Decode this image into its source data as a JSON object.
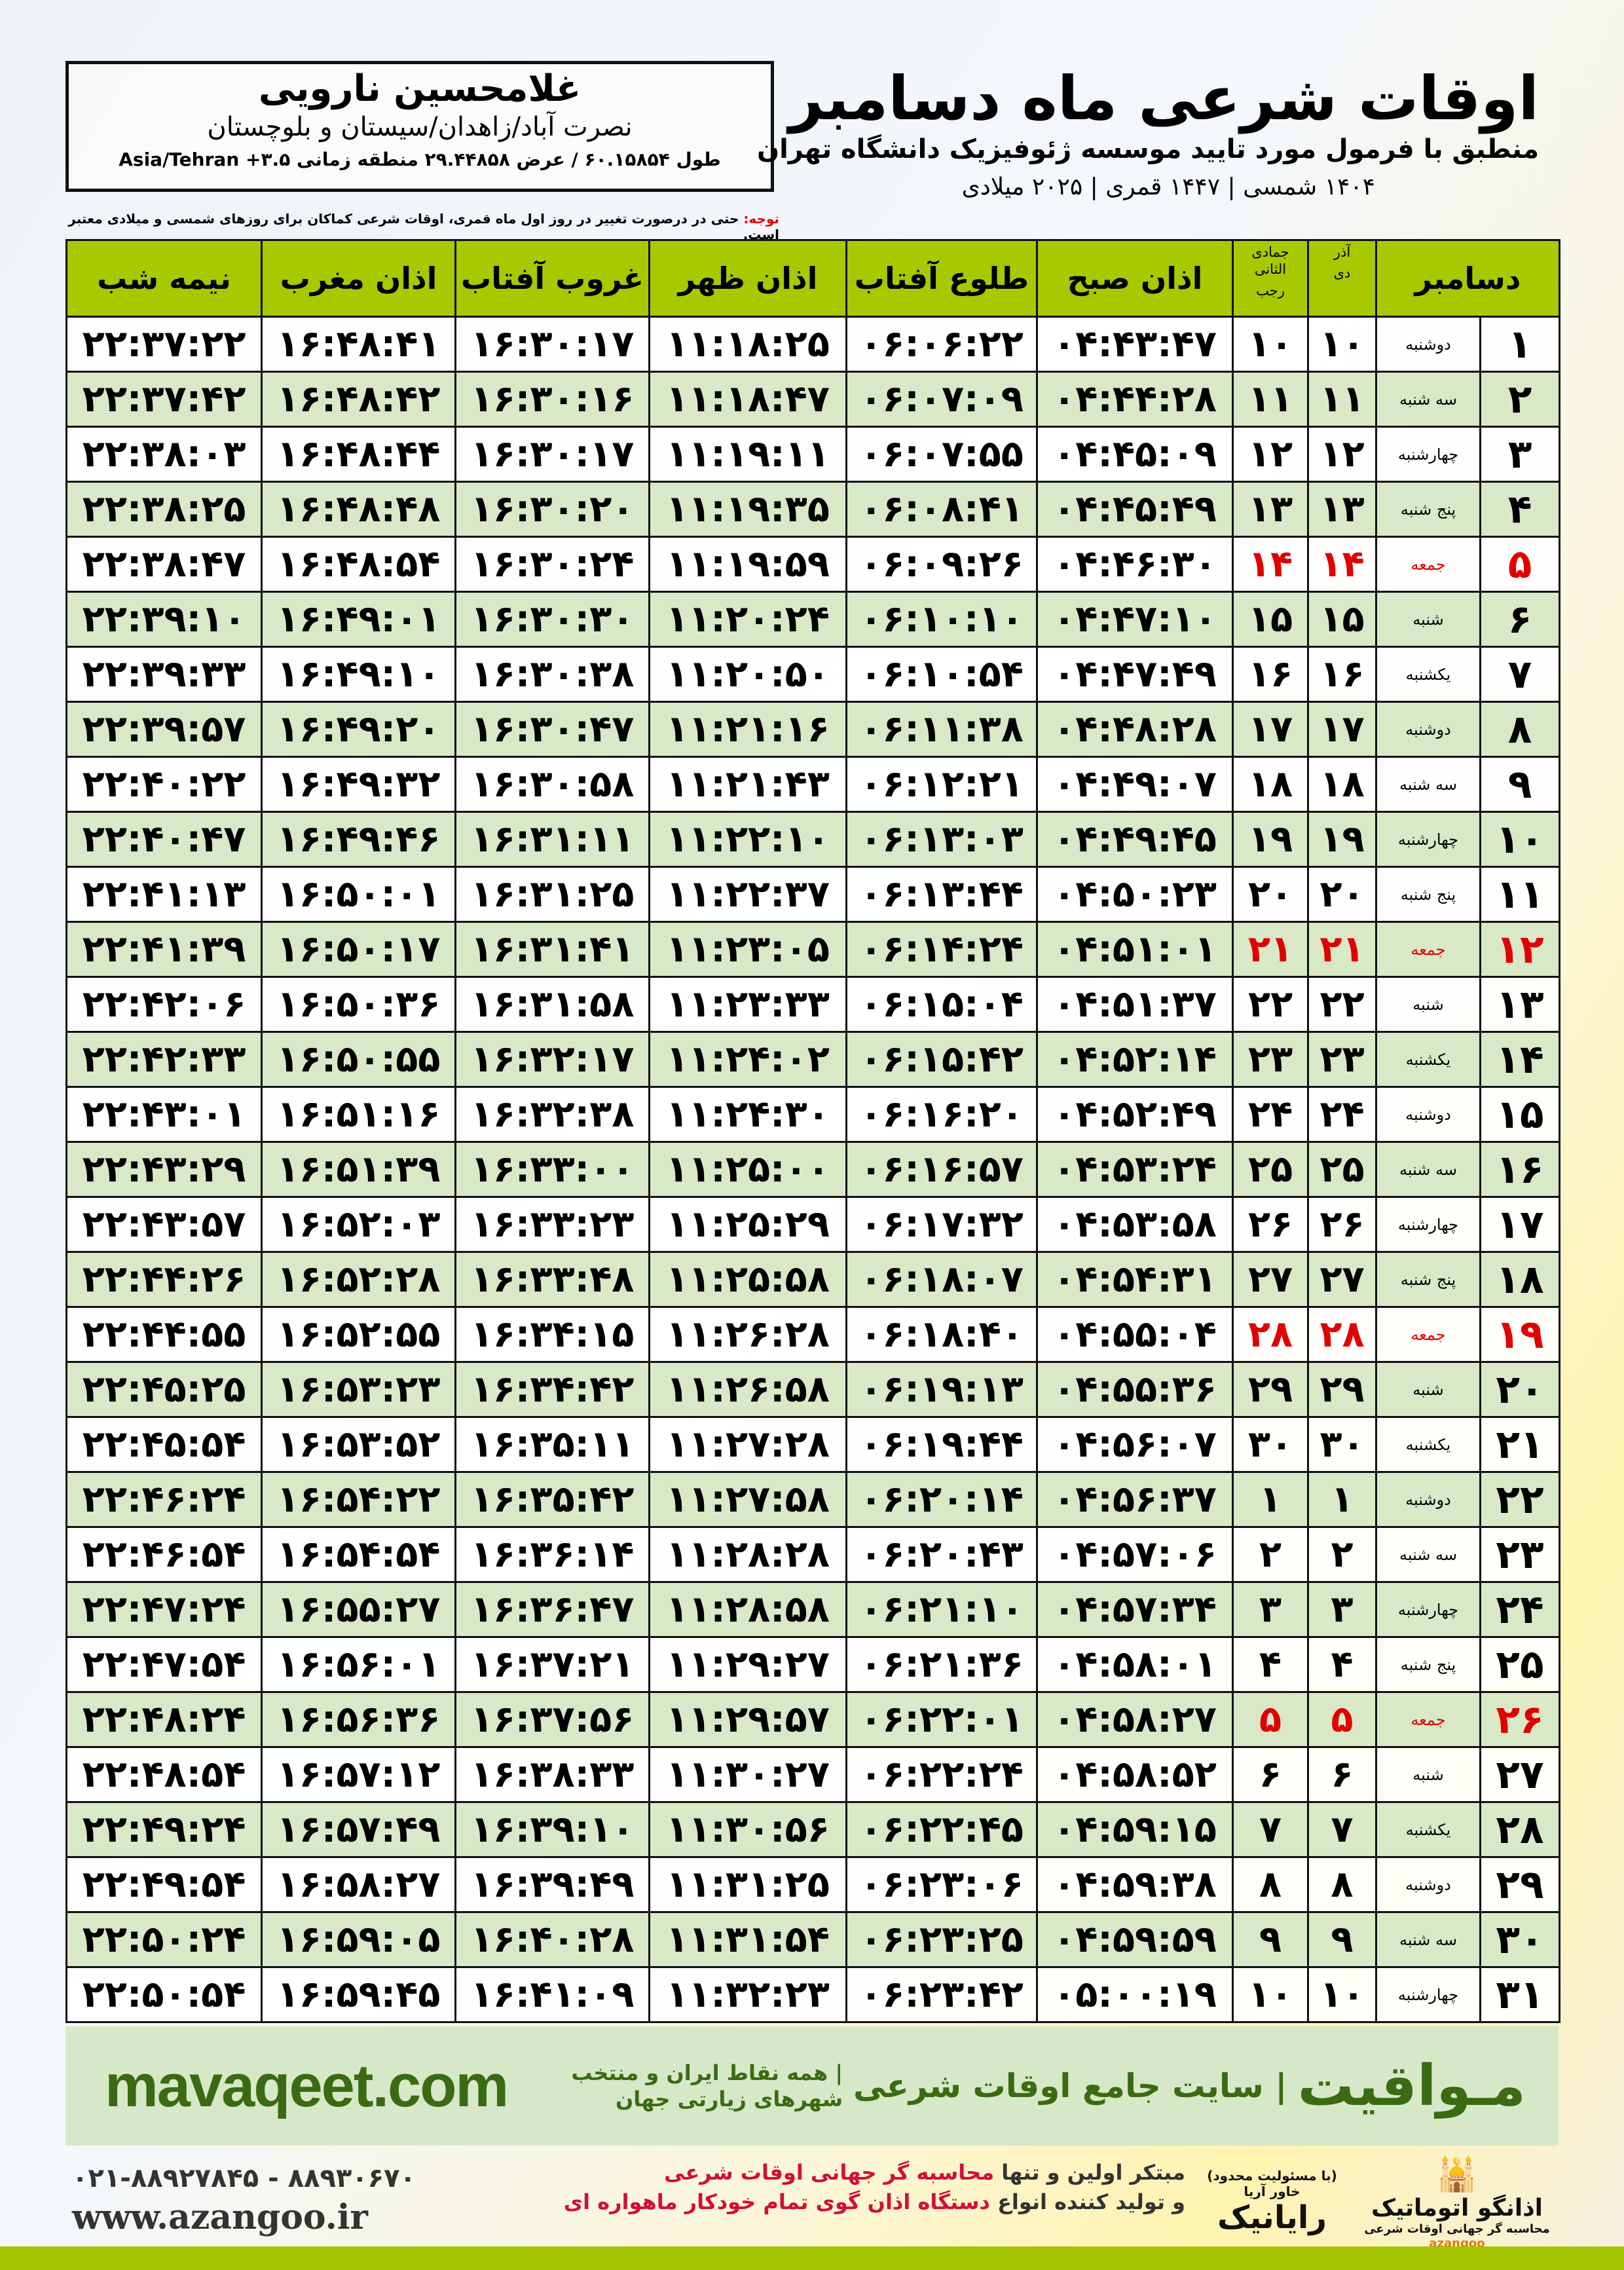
{
  "header": {
    "title": "اوقات شرعی ماه دسامبر",
    "subtitle": "منطبق با فرمول مورد تایید موسسه ژئوفیزیک دانشگاه تهران",
    "years": "۱۴۰۴ شمسی | ۱۴۴۷ قمری | ۲۰۲۵ میلادی"
  },
  "location": {
    "name": "غلامحسین نارویی",
    "place": "نصرت آباد/زاهدان/سیستان و بلوچستان",
    "coords": "طول ۶۰.۱۵۸۵۴ / عرض ۲۹.۴۴۸۵۸ منطقه زمانی ۳.۵+ Asia/Tehran"
  },
  "note": {
    "label": "توجه:",
    "text": " حتی در درصورت تغییر در روز اول ماه قمری، اوقات شرعی کماکان برای روزهای شمسی و میلادی معتبر است."
  },
  "colors": {
    "header": "#a8c800",
    "row_alt": "#d9e8c6",
    "friday": "#e00000",
    "footer": "#d7e8c8",
    "brand": "#3a6b12"
  },
  "table": {
    "headers": {
      "day": "دسامبر",
      "dey_top": "آذر",
      "dey": "دی",
      "rajab_top": "جمادی الثانی",
      "rajab": "رجب",
      "fajr": "اذان صبح",
      "sunrise": "طلوع آفتاب",
      "dhuhr": "اذان ظهر",
      "sunset": "غروب آفتاب",
      "maghrib": "اذان مغرب",
      "midnight": "نیمه شب"
    },
    "rows": [
      [
        "۱",
        "دوشنبه",
        "۱۰",
        "۱۰",
        "۰۴:۴۳:۴۷",
        "۰۶:۰۶:۲۲",
        "۱۱:۱۸:۲۵",
        "۱۶:۳۰:۱۷",
        "۱۶:۴۸:۴۱",
        "۲۲:۳۷:۲۲"
      ],
      [
        "۲",
        "سه شنبه",
        "۱۱",
        "۱۱",
        "۰۴:۴۴:۲۸",
        "۰۶:۰۷:۰۹",
        "۱۱:۱۸:۴۷",
        "۱۶:۳۰:۱۶",
        "۱۶:۴۸:۴۲",
        "۲۲:۳۷:۴۲"
      ],
      [
        "۳",
        "چهارشنبه",
        "۱۲",
        "۱۲",
        "۰۴:۴۵:۰۹",
        "۰۶:۰۷:۵۵",
        "۱۱:۱۹:۱۱",
        "۱۶:۳۰:۱۷",
        "۱۶:۴۸:۴۴",
        "۲۲:۳۸:۰۳"
      ],
      [
        "۴",
        "پنج شنبه",
        "۱۳",
        "۱۳",
        "۰۴:۴۵:۴۹",
        "۰۶:۰۸:۴۱",
        "۱۱:۱۹:۳۵",
        "۱۶:۳۰:۲۰",
        "۱۶:۴۸:۴۸",
        "۲۲:۳۸:۲۵"
      ],
      [
        "۵",
        "جمعه",
        "۱۴",
        "۱۴",
        "۰۴:۴۶:۳۰",
        "۰۶:۰۹:۲۶",
        "۱۱:۱۹:۵۹",
        "۱۶:۳۰:۲۴",
        "۱۶:۴۸:۵۴",
        "۲۲:۳۸:۴۷"
      ],
      [
        "۶",
        "شنبه",
        "۱۵",
        "۱۵",
        "۰۴:۴۷:۱۰",
        "۰۶:۱۰:۱۰",
        "۱۱:۲۰:۲۴",
        "۱۶:۳۰:۳۰",
        "۱۶:۴۹:۰۱",
        "۲۲:۳۹:۱۰"
      ],
      [
        "۷",
        "یکشنبه",
        "۱۶",
        "۱۶",
        "۰۴:۴۷:۴۹",
        "۰۶:۱۰:۵۴",
        "۱۱:۲۰:۵۰",
        "۱۶:۳۰:۳۸",
        "۱۶:۴۹:۱۰",
        "۲۲:۳۹:۳۳"
      ],
      [
        "۸",
        "دوشنبه",
        "۱۷",
        "۱۷",
        "۰۴:۴۸:۲۸",
        "۰۶:۱۱:۳۸",
        "۱۱:۲۱:۱۶",
        "۱۶:۳۰:۴۷",
        "۱۶:۴۹:۲۰",
        "۲۲:۳۹:۵۷"
      ],
      [
        "۹",
        "سه شنبه",
        "۱۸",
        "۱۸",
        "۰۴:۴۹:۰۷",
        "۰۶:۱۲:۲۱",
        "۱۱:۲۱:۴۳",
        "۱۶:۳۰:۵۸",
        "۱۶:۴۹:۳۲",
        "۲۲:۴۰:۲۲"
      ],
      [
        "۱۰",
        "چهارشنبه",
        "۱۹",
        "۱۹",
        "۰۴:۴۹:۴۵",
        "۰۶:۱۳:۰۳",
        "۱۱:۲۲:۱۰",
        "۱۶:۳۱:۱۱",
        "۱۶:۴۹:۴۶",
        "۲۲:۴۰:۴۷"
      ],
      [
        "۱۱",
        "پنج شنبه",
        "۲۰",
        "۲۰",
        "۰۴:۵۰:۲۳",
        "۰۶:۱۳:۴۴",
        "۱۱:۲۲:۳۷",
        "۱۶:۳۱:۲۵",
        "۱۶:۵۰:۰۱",
        "۲۲:۴۱:۱۳"
      ],
      [
        "۱۲",
        "جمعه",
        "۲۱",
        "۲۱",
        "۰۴:۵۱:۰۱",
        "۰۶:۱۴:۲۴",
        "۱۱:۲۳:۰۵",
        "۱۶:۳۱:۴۱",
        "۱۶:۵۰:۱۷",
        "۲۲:۴۱:۳۹"
      ],
      [
        "۱۳",
        "شنبه",
        "۲۲",
        "۲۲",
        "۰۴:۵۱:۳۷",
        "۰۶:۱۵:۰۴",
        "۱۱:۲۳:۳۳",
        "۱۶:۳۱:۵۸",
        "۱۶:۵۰:۳۶",
        "۲۲:۴۲:۰۶"
      ],
      [
        "۱۴",
        "یکشنبه",
        "۲۳",
        "۲۳",
        "۰۴:۵۲:۱۴",
        "۰۶:۱۵:۴۲",
        "۱۱:۲۴:۰۲",
        "۱۶:۳۲:۱۷",
        "۱۶:۵۰:۵۵",
        "۲۲:۴۲:۳۳"
      ],
      [
        "۱۵",
        "دوشنبه",
        "۲۴",
        "۲۴",
        "۰۴:۵۲:۴۹",
        "۰۶:۱۶:۲۰",
        "۱۱:۲۴:۳۰",
        "۱۶:۳۲:۳۸",
        "۱۶:۵۱:۱۶",
        "۲۲:۴۳:۰۱"
      ],
      [
        "۱۶",
        "سه شنبه",
        "۲۵",
        "۲۵",
        "۰۴:۵۳:۲۴",
        "۰۶:۱۶:۵۷",
        "۱۱:۲۵:۰۰",
        "۱۶:۳۳:۰۰",
        "۱۶:۵۱:۳۹",
        "۲۲:۴۳:۲۹"
      ],
      [
        "۱۷",
        "چهارشنبه",
        "۲۶",
        "۲۶",
        "۰۴:۵۳:۵۸",
        "۰۶:۱۷:۳۲",
        "۱۱:۲۵:۲۹",
        "۱۶:۳۳:۲۳",
        "۱۶:۵۲:۰۳",
        "۲۲:۴۳:۵۷"
      ],
      [
        "۱۸",
        "پنج شنبه",
        "۲۷",
        "۲۷",
        "۰۴:۵۴:۳۱",
        "۰۶:۱۸:۰۷",
        "۱۱:۲۵:۵۸",
        "۱۶:۳۳:۴۸",
        "۱۶:۵۲:۲۸",
        "۲۲:۴۴:۲۶"
      ],
      [
        "۱۹",
        "جمعه",
        "۲۸",
        "۲۸",
        "۰۴:۵۵:۰۴",
        "۰۶:۱۸:۴۰",
        "۱۱:۲۶:۲۸",
        "۱۶:۳۴:۱۵",
        "۱۶:۵۲:۵۵",
        "۲۲:۴۴:۵۵"
      ],
      [
        "۲۰",
        "شنبه",
        "۲۹",
        "۲۹",
        "۰۴:۵۵:۳۶",
        "۰۶:۱۹:۱۳",
        "۱۱:۲۶:۵۸",
        "۱۶:۳۴:۴۲",
        "۱۶:۵۳:۲۳",
        "۲۲:۴۵:۲۵"
      ],
      [
        "۲۱",
        "یکشنبه",
        "۳۰",
        "۳۰",
        "۰۴:۵۶:۰۷",
        "۰۶:۱۹:۴۴",
        "۱۱:۲۷:۲۸",
        "۱۶:۳۵:۱۱",
        "۱۶:۵۳:۵۲",
        "۲۲:۴۵:۵۴"
      ],
      [
        "۲۲",
        "دوشنبه",
        "۱",
        "۱",
        "۰۴:۵۶:۳۷",
        "۰۶:۲۰:۱۴",
        "۱۱:۲۷:۵۸",
        "۱۶:۳۵:۴۲",
        "۱۶:۵۴:۲۲",
        "۲۲:۴۶:۲۴"
      ],
      [
        "۲۳",
        "سه شنبه",
        "۲",
        "۲",
        "۰۴:۵۷:۰۶",
        "۰۶:۲۰:۴۳",
        "۱۱:۲۸:۲۸",
        "۱۶:۳۶:۱۴",
        "۱۶:۵۴:۵۴",
        "۲۲:۴۶:۵۴"
      ],
      [
        "۲۴",
        "چهارشنبه",
        "۳",
        "۳",
        "۰۴:۵۷:۳۴",
        "۰۶:۲۱:۱۰",
        "۱۱:۲۸:۵۸",
        "۱۶:۳۶:۴۷",
        "۱۶:۵۵:۲۷",
        "۲۲:۴۷:۲۴"
      ],
      [
        "۲۵",
        "پنج شنبه",
        "۴",
        "۴",
        "۰۴:۵۸:۰۱",
        "۰۶:۲۱:۳۶",
        "۱۱:۲۹:۲۷",
        "۱۶:۳۷:۲۱",
        "۱۶:۵۶:۰۱",
        "۲۲:۴۷:۵۴"
      ],
      [
        "۲۶",
        "جمعه",
        "۵",
        "۵",
        "۰۴:۵۸:۲۷",
        "۰۶:۲۲:۰۱",
        "۱۱:۲۹:۵۷",
        "۱۶:۳۷:۵۶",
        "۱۶:۵۶:۳۶",
        "۲۲:۴۸:۲۴"
      ],
      [
        "۲۷",
        "شنبه",
        "۶",
        "۶",
        "۰۴:۵۸:۵۲",
        "۰۶:۲۲:۲۴",
        "۱۱:۳۰:۲۷",
        "۱۶:۳۸:۳۳",
        "۱۶:۵۷:۱۲",
        "۲۲:۴۸:۵۴"
      ],
      [
        "۲۸",
        "یکشنبه",
        "۷",
        "۷",
        "۰۴:۵۹:۱۵",
        "۰۶:۲۲:۴۵",
        "۱۱:۳۰:۵۶",
        "۱۶:۳۹:۱۰",
        "۱۶:۵۷:۴۹",
        "۲۲:۴۹:۲۴"
      ],
      [
        "۲۹",
        "دوشنبه",
        "۸",
        "۸",
        "۰۴:۵۹:۳۸",
        "۰۶:۲۳:۰۶",
        "۱۱:۳۱:۲۵",
        "۱۶:۳۹:۴۹",
        "۱۶:۵۸:۲۷",
        "۲۲:۴۹:۵۴"
      ],
      [
        "۳۰",
        "سه شنبه",
        "۹",
        "۹",
        "۰۴:۵۹:۵۹",
        "۰۶:۲۳:۲۵",
        "۱۱:۳۱:۵۴",
        "۱۶:۴۰:۲۸",
        "۱۶:۵۹:۰۵",
        "۲۲:۵۰:۲۴"
      ],
      [
        "۳۱",
        "چهارشنبه",
        "۱۰",
        "۱۰",
        "۰۵:۰۰:۱۹",
        "۰۶:۲۳:۴۲",
        "۱۱:۳۲:۲۳",
        "۱۶:۴۱:۰۹",
        "۱۶:۵۹:۴۵",
        "۲۲:۵۰:۵۴"
      ]
    ]
  },
  "footer": {
    "site": "mavaqeet.com",
    "brand": "مـواقیت",
    "slogan1": "| سایت جامع اوقات شرعی",
    "slogan2": "| همه نقاط ایران و منتخب شهرهای زیارتی جهان",
    "phones": "۰۲۱-۸۸۹۲۷۸۴۵ - ۸۸۹۳۰۶۷۰",
    "web": "www.azangoo.ir",
    "ad_line1_a": "مبتکر اولین و تنها ",
    "ad_line1_b": "محاسبه گر جهانی اوقات شرعی",
    "ad_line2_a": "و تولید کننده انواع ",
    "ad_line2_b": "دستگاه اذان گوی تمام خودکار ماهواره ای",
    "logo_rayanik": "رایانیک",
    "logo_rayanik_sub": "(با مسئولیت محدود) خاور آریا",
    "logo_azangoo": "اذانگو اتوماتیک",
    "logo_azangoo_sub": "محاسبه گر جهانی اوقات شرعی",
    "logo_azangoo_latin": "azangoo"
  }
}
